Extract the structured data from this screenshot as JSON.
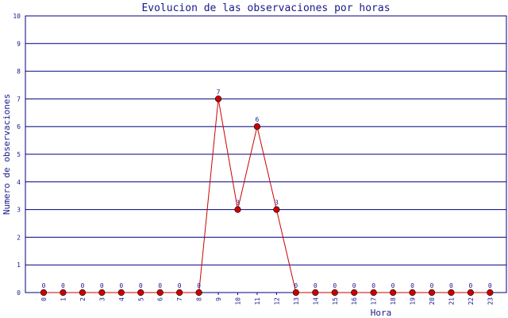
{
  "chart_data": {
    "type": "line",
    "title": "Evolucion de las observaciones por horas",
    "xlabel": "Hora",
    "ylabel": "Numero de observaciones",
    "categories": [
      "0",
      "1",
      "2",
      "3",
      "4",
      "5",
      "6",
      "7",
      "8",
      "9",
      "10",
      "11",
      "12",
      "13",
      "14",
      "15",
      "16",
      "17",
      "18",
      "19",
      "20",
      "21",
      "22",
      "23"
    ],
    "series": [
      {
        "values": [
          0,
          0,
          0,
          0,
          0,
          0,
          0,
          0,
          0,
          7,
          3,
          6,
          3,
          0,
          0,
          0,
          0,
          0,
          0,
          0,
          0,
          0,
          0,
          0
        ]
      }
    ],
    "ylim": [
      0,
      10
    ],
    "yticks": [
      "0",
      "1",
      "2",
      "3",
      "4",
      "5",
      "6",
      "7",
      "8",
      "9",
      "10"
    ],
    "grid": true,
    "colors": {
      "line": "#cc0000",
      "marker": "#cc0000",
      "grid": "#000080",
      "text": "#1a1a8a",
      "axis": "#000080"
    }
  }
}
